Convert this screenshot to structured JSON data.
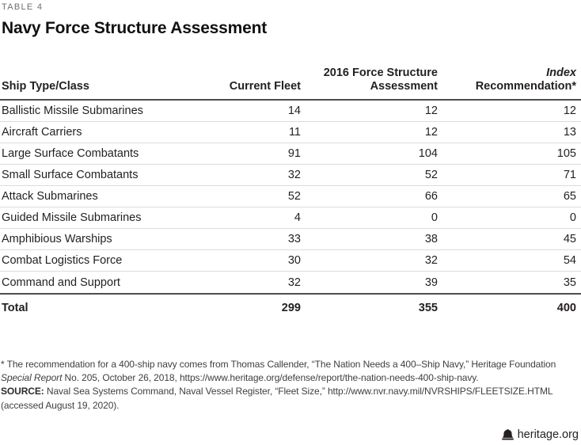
{
  "page": {
    "table_label": "TABLE 4",
    "title": "Navy Force Structure Assessment"
  },
  "table": {
    "header": {
      "ship_type": "Ship Type/Class",
      "current_fleet": "Current Fleet",
      "fsa_line1": "2016 Force Structure",
      "fsa_line2": "Assessment",
      "index_line1": "Index",
      "index_line2": "Recommendation*"
    },
    "rows": [
      {
        "label": "Ballistic Missile Submarines",
        "current_fleet": "14",
        "assessment_2016": "12",
        "index_recommendation": "12"
      },
      {
        "label": "Aircraft Carriers",
        "current_fleet": "11",
        "assessment_2016": "12",
        "index_recommendation": "13"
      },
      {
        "label": "Large Surface Combatants",
        "current_fleet": "91",
        "assessment_2016": "104",
        "index_recommendation": "105"
      },
      {
        "label": "Small Surface Combatants",
        "current_fleet": "32",
        "assessment_2016": "52",
        "index_recommendation": "71"
      },
      {
        "label": "Attack Submarines",
        "current_fleet": "52",
        "assessment_2016": "66",
        "index_recommendation": "65"
      },
      {
        "label": "Guided Missile Submarines",
        "current_fleet": "4",
        "assessment_2016": "0",
        "index_recommendation": "0"
      },
      {
        "label": "Amphibious Warships",
        "current_fleet": "33",
        "assessment_2016": "38",
        "index_recommendation": "45"
      },
      {
        "label": "Combat Logistics Force",
        "current_fleet": "30",
        "assessment_2016": "32",
        "index_recommendation": "54"
      },
      {
        "label": "Command and Support",
        "current_fleet": "32",
        "assessment_2016": "39",
        "index_recommendation": "35"
      }
    ],
    "total": {
      "label": "Total",
      "current_fleet": "299",
      "assessment_2016": "355",
      "index_recommendation": "400"
    }
  },
  "footnotes": {
    "line1": "* The recommendation for a 400-ship navy comes from Thomas Callender, “The Nation Needs a 400–Ship Navy,” Heritage Foundation",
    "line2_italic": "Special Report",
    "line2_rest": " No. 205, October 26, 2018, https://www.heritage.org/defense/report/the-nation-needs-400-ship-navy.",
    "line3_bold": "SOURCE:",
    "line3_rest": " Naval Sea Systems Command, Naval Vessel Register, “Fleet Size,” http://www.nvr.navy.mil/NVRSHIPS/FLEETSIZE.HTML",
    "line4": "(accessed August 19, 2020)."
  },
  "footer": {
    "brand": "heritage.org",
    "bell_icon": "liberty-bell-icon"
  },
  "colors": {
    "text_black": "#231f20",
    "label_gray": "#6d6e71",
    "rule_dark": "#4d4d4f",
    "rule_light": "#dcdcdc",
    "footnote_gray": "#3f3f41"
  }
}
